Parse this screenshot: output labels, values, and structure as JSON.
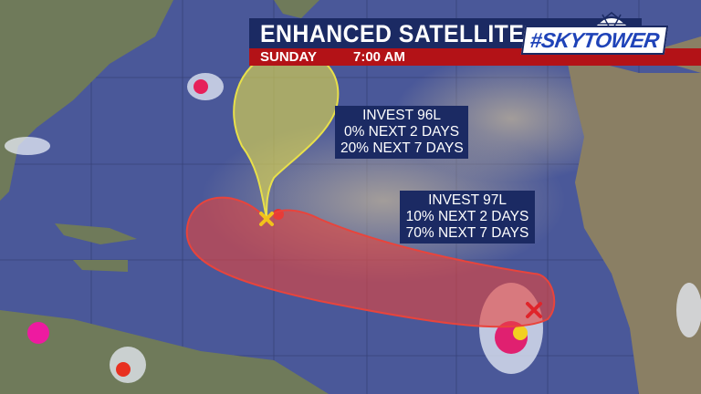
{
  "header": {
    "title": "ENHANCED SATELLITE",
    "day": "SUNDAY",
    "time": "7:00 AM",
    "logo_text": "#SKYTOWER"
  },
  "systems": [
    {
      "name": "INVEST 96L",
      "two_day": "0% NEXT 2 DAYS",
      "seven_day": "20% NEXT 7 DAYS",
      "cone_color": "#e8e04a",
      "marker_color": "#f2c21a"
    },
    {
      "name": "INVEST 97L",
      "two_day": "10% NEXT 2 DAYS",
      "seven_day": "70% NEXT 7 DAYS",
      "cone_color": "#e8443c",
      "marker_color": "#e0242a"
    }
  ],
  "colors": {
    "ocean": "#4a5899",
    "banner_navy": "#1b2a63",
    "banner_red": "#b31217"
  }
}
